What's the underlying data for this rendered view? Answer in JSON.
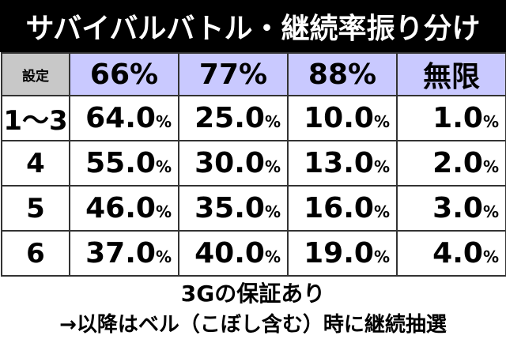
{
  "title": "サバイバルバトル・継続率振り分け",
  "table": {
    "corner_label": "設定",
    "columns": [
      "66%",
      "77%",
      "88%",
      "無限"
    ],
    "percent_sign": "%",
    "rows": [
      {
        "setting": "1〜3",
        "values": [
          "64.0",
          "25.0",
          "10.0",
          "1.0"
        ]
      },
      {
        "setting": "4",
        "values": [
          "55.0",
          "30.0",
          "13.0",
          "2.0"
        ]
      },
      {
        "setting": "5",
        "values": [
          "46.0",
          "35.0",
          "16.0",
          "3.0"
        ]
      },
      {
        "setting": "6",
        "values": [
          "37.0",
          "40.0",
          "19.0",
          "4.0"
        ]
      }
    ]
  },
  "notes": {
    "line1": "3Gの保証あり",
    "line2": "→以降はベル（こぼし含む）時に継続抽選"
  },
  "colors": {
    "title_bg": "#000000",
    "header_bg": "#c9c9ff",
    "corner_bg": "#c8c8c8"
  }
}
